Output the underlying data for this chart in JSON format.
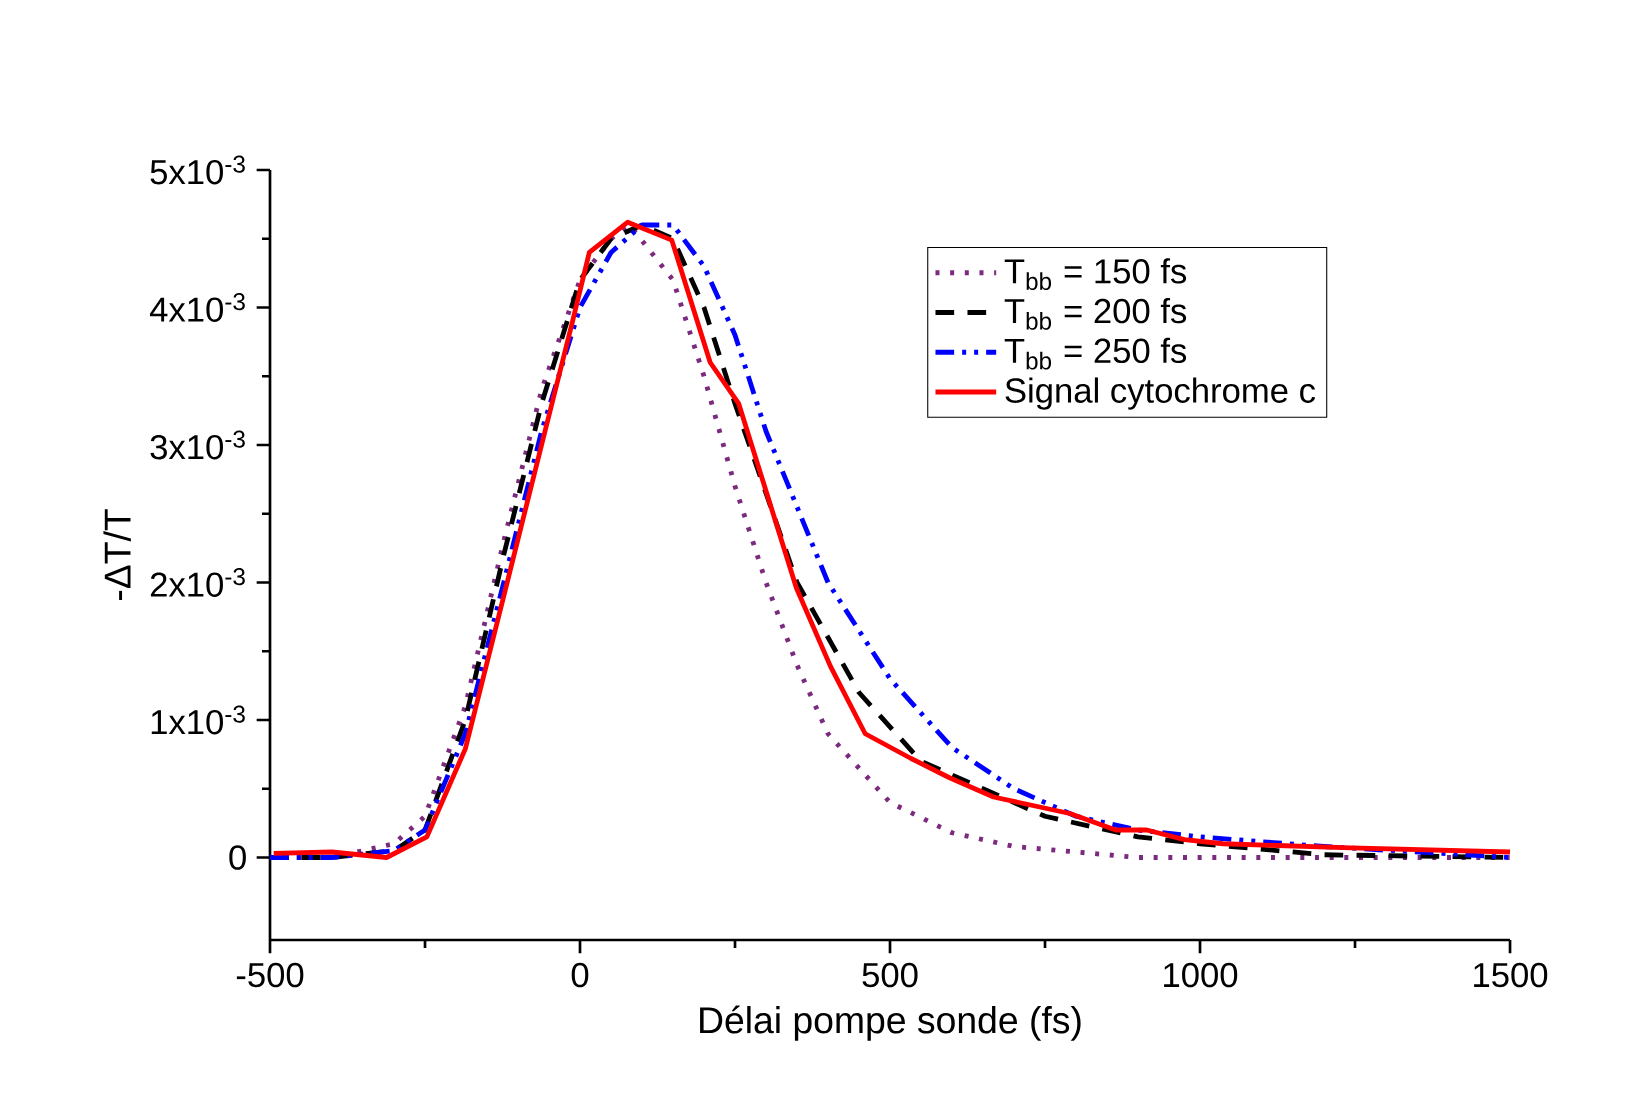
{
  "chart_data": {
    "type": "line",
    "xlabel": "Délai pompe sonde (fs)",
    "ylabel": "-ΔT/T",
    "xlim": [
      -500,
      1500
    ],
    "xticks": [
      -500,
      0,
      500,
      1000,
      1500
    ],
    "ylim": [
      -0.0006,
      0.005
    ],
    "yticks": [
      {
        "value": 0,
        "label": "0"
      },
      {
        "value": 0.001,
        "label": "1x10$^{-3}$"
      },
      {
        "value": 0.002,
        "label": "2x10$^{-3}$"
      },
      {
        "value": 0.003,
        "label": "3x10$^{-3}$"
      },
      {
        "value": 0.004,
        "label": "4x10$^{-3}$"
      },
      {
        "value": 0.005,
        "label": "5x10$^{-3}$"
      }
    ],
    "legend": "top right",
    "grid": false,
    "series": [
      {
        "name": "T$_{bb}$ = 150 fs",
        "color": "#7b2a7f",
        "line_style": "dotted",
        "x": [
          -500,
          -400,
          -300,
          -250,
          -185,
          -123,
          -62,
          0,
          50,
          80,
          150,
          200,
          250,
          300,
          350,
          400,
          500,
          600,
          700,
          900,
          1200,
          1500
        ],
        "values": [
          0,
          0,
          0.0001,
          0.0003,
          0.0011,
          0.0023,
          0.0034,
          0.0042,
          0.0045,
          0.0046,
          0.0042,
          0.0035,
          0.0027,
          0.002,
          0.0014,
          0.0009,
          0.0004,
          0.00018,
          8e-05,
          0,
          0,
          0
        ]
      },
      {
        "name": "T$_{bb}$ = 200 fs",
        "color": "#000000",
        "line_style": "dashed",
        "x": [
          -500,
          -400,
          -300,
          -250,
          -185,
          -123,
          -62,
          0,
          50,
          100,
          150,
          200,
          250,
          350,
          450,
          550,
          650,
          750,
          900,
          1000,
          1200,
          1500
        ],
        "values": [
          0,
          0,
          5e-05,
          0.0002,
          0.001,
          0.0022,
          0.0033,
          0.0042,
          0.0045,
          0.0046,
          0.0045,
          0.004,
          0.0033,
          0.002,
          0.0012,
          0.0007,
          0.0005,
          0.0003,
          0.00015,
          0.0001,
          2e-05,
          0
        ]
      },
      {
        "name": "T$_{bb}$ = 250 fs",
        "color": "#0000ff",
        "line_style": "dashdotdotted",
        "x": [
          -500,
          -400,
          -300,
          -250,
          -185,
          -123,
          -62,
          0,
          50,
          100,
          150,
          200,
          250,
          300,
          400,
          500,
          600,
          700,
          800,
          900,
          1000,
          1200,
          1500
        ],
        "values": [
          0,
          0,
          5e-05,
          0.0002,
          0.0009,
          0.002,
          0.0031,
          0.004,
          0.0044,
          0.0046,
          0.0046,
          0.0043,
          0.0038,
          0.0031,
          0.002,
          0.0013,
          0.0008,
          0.0005,
          0.0003,
          0.0002,
          0.00015,
          8e-05,
          0
        ]
      },
      {
        "name": "Signal cytochrome c",
        "color": "#ff0000",
        "line_style": "solid",
        "x": [
          -494,
          -400,
          -312,
          -247,
          -185,
          -123,
          -62,
          -12,
          15,
          77,
          148,
          210,
          256,
          349,
          404,
          460,
          534,
          596,
          667,
          790,
          864,
          914,
          975,
          1037,
          1244,
          1500
        ],
        "values": [
          3e-05,
          4e-05,
          0,
          0.00015,
          0.00079,
          0.0019,
          0.003,
          0.0039,
          0.0044,
          0.00462,
          0.00449,
          0.0036,
          0.0033,
          0.00196,
          0.00139,
          0.0009,
          0.00072,
          0.00058,
          0.00044,
          0.00032,
          0.0002,
          0.0002,
          0.00013,
          0.0001,
          7e-05,
          4e-05
        ]
      }
    ]
  }
}
